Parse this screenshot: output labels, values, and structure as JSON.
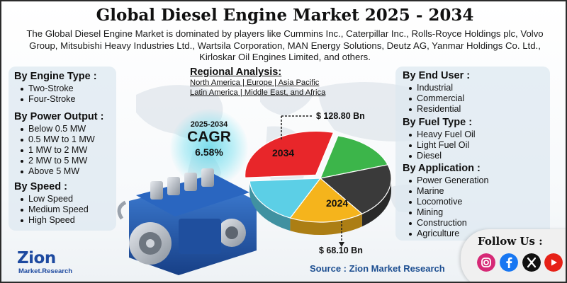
{
  "title": "Global Diesel Engine Market 2025 - 2034",
  "description": "The Global Diesel Engine Market is dominated by players like Cummins Inc., Caterpillar Inc., Rolls-Royce Holdings plc, Volvo Group, Mitsubishi Heavy Industries Ltd., Wartsila Corporation, MAN Energy Solutions, Deutz AG, Yanmar Holdings Co. Ltd., Kirloskar Oil Engines Limited, and others.",
  "left_segments": [
    {
      "heading": "By Engine Type  :",
      "items": [
        "Two-Stroke",
        "Four-Stroke"
      ]
    },
    {
      "heading": "By Power Output :",
      "items": [
        "Below 0.5 MW",
        "0.5 MW to 1 MW",
        "1 MW to 2 MW",
        "2 MW to 5 MW",
        "Above 5 MW"
      ]
    },
    {
      "heading": "By Speed :",
      "items": [
        "Low Speed",
        "Medium Speed",
        "High Speed"
      ]
    }
  ],
  "right_segments": [
    {
      "heading": "By End User :",
      "items": [
        "Industrial",
        "Commercial",
        "Residential"
      ]
    },
    {
      "heading": "By Fuel Type :",
      "items": [
        "Heavy Fuel Oil",
        "Light Fuel Oil",
        "Diesel"
      ]
    },
    {
      "heading": "By Application :",
      "items": [
        "Power Generation",
        "Marine",
        "Locomotive",
        "Mining",
        "Construction",
        "Agriculture"
      ]
    }
  ],
  "regional": {
    "title": "Regional Analysis:",
    "line1": "North America | Europe | Asia Pacific",
    "line2": "Latin America | Middle East, and Africa"
  },
  "cagr": {
    "period": "2025-2034",
    "label": "CAGR",
    "value": "6.58%"
  },
  "chart_data": {
    "type": "pie",
    "title": "",
    "slices": [
      {
        "label": "2034",
        "color": "#e8262a"
      },
      {
        "label": "",
        "color": "#3cb54a"
      },
      {
        "label": "",
        "color": "#3a3a3a"
      },
      {
        "label": "2024",
        "color": "#f5b41c"
      },
      {
        "label": "",
        "color": "#5ccfe6"
      }
    ],
    "annotations": [
      {
        "text": "$ 128.80 Bn",
        "refers_to": "2034"
      },
      {
        "text": "$ 68.10 Bn",
        "refers_to": "2024"
      }
    ],
    "values": [
      {
        "year": "2024",
        "value": 68.1,
        "unit": "$ Bn"
      },
      {
        "year": "2034",
        "value": 128.8,
        "unit": "$ Bn"
      }
    ]
  },
  "source": "Source : Zion Market Research",
  "logo": {
    "word": "Zion",
    "sub": "Market.Research"
  },
  "follow": {
    "label": "Follow Us :",
    "icons": [
      "instagram-icon",
      "facebook-icon",
      "x-icon",
      "youtube-icon"
    ]
  },
  "colors": {
    "accent_blue": "#1d4f91",
    "cagr_glow": "#50d2e6"
  }
}
